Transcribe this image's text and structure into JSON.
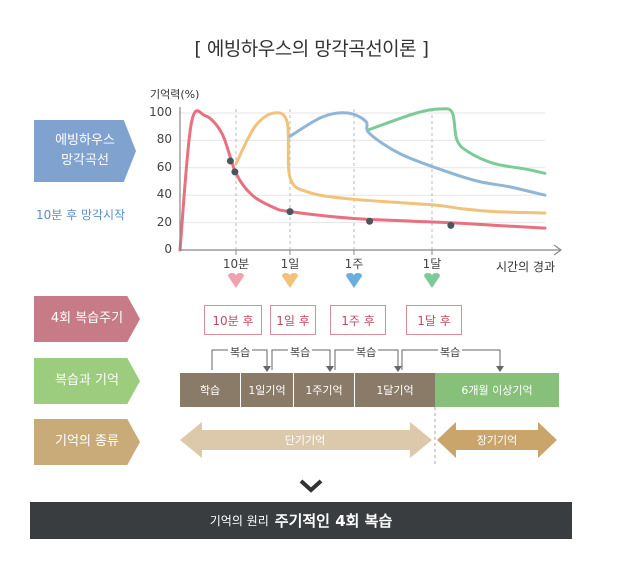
{
  "title": "[ 에빙하우스의 망각곡선이론 ]",
  "side": {
    "curve_label": "에빙하우스\n망각곡선",
    "forget_start": "10분 후 망각시작",
    "cycle_label": "4회 복습주기",
    "review_memory_label": "복습과 기억",
    "memory_types_label": "기억의 종류"
  },
  "chart_data": {
    "type": "line",
    "ylabel": "기억력(%)",
    "xlabel": "시간의 경과",
    "yticks": [
      "0",
      "20",
      "40",
      "60",
      "80",
      "100"
    ],
    "ylim": [
      0,
      100
    ],
    "xticks": [
      "10분",
      "1일",
      "1주",
      "1달"
    ],
    "series": [
      {
        "color": "#e8707f",
        "points": [
          [
            0,
            0
          ],
          [
            0.2,
            92
          ],
          [
            0.45,
            98
          ],
          [
            0.75,
            85
          ],
          [
            1,
            56
          ],
          [
            1.3,
            40
          ],
          [
            1.7,
            31
          ],
          [
            2,
            28
          ],
          [
            3,
            23
          ],
          [
            4.5,
            20
          ],
          [
            6,
            18
          ],
          [
            7.6,
            16
          ]
        ]
      },
      {
        "color": "#f0c27a",
        "points": [
          [
            1,
            63
          ],
          [
            1.35,
            90
          ],
          [
            1.7,
            100
          ],
          [
            1.95,
            93
          ],
          [
            2,
            53
          ],
          [
            2.3,
            42
          ],
          [
            3,
            37
          ],
          [
            4,
            33
          ],
          [
            5,
            30
          ],
          [
            6,
            28
          ],
          [
            7.6,
            27
          ]
        ]
      },
      {
        "color": "#8fb6d6",
        "points": [
          [
            2,
            83
          ],
          [
            2.5,
            97
          ],
          [
            2.9,
            100
          ],
          [
            3.15,
            94
          ],
          [
            3.2,
            85
          ],
          [
            3.6,
            70
          ],
          [
            4.5,
            57
          ],
          [
            5.5,
            50
          ],
          [
            6.5,
            46
          ],
          [
            7.6,
            40
          ]
        ]
      },
      {
        "color": "#7ccb97",
        "points": [
          [
            3.2,
            88
          ],
          [
            3.8,
            100
          ],
          [
            4.3,
            103
          ],
          [
            4.65,
            100
          ],
          [
            4.8,
            80
          ],
          [
            5.2,
            71
          ],
          [
            6,
            63
          ],
          [
            7,
            59
          ],
          [
            7.6,
            56
          ]
        ]
      }
    ],
    "review_points": [
      [
        0.9,
        65
      ],
      [
        0.98,
        57
      ],
      [
        2,
        28
      ],
      [
        3.2,
        21
      ],
      [
        4.6,
        18
      ]
    ]
  },
  "intervals": [
    "10분 후",
    "1일 후",
    "1주 후",
    "1달 후"
  ],
  "marker_colors": [
    "#f0a2b0",
    "#f0c27a",
    "#6aaee0",
    "#7ccb97"
  ],
  "stages": [
    {
      "label": "학습",
      "color": "#8a7a68"
    },
    {
      "label": "1일기억",
      "color": "#8a7a68"
    },
    {
      "label": "1주기억",
      "color": "#8a7a68"
    },
    {
      "label": "1달기억",
      "color": "#8a7a68"
    },
    {
      "label": "6개월 이상기억",
      "color": "#86c079"
    }
  ],
  "review": "복습",
  "memory_types": {
    "short": "단기기억",
    "long": "장기기억"
  },
  "footer": {
    "prefix": "기억의 원리",
    "emphasis": "주기적인 4회 복습"
  },
  "colors": {
    "pink_tag": "#c77b87",
    "blue_tag": "#7fa2cf",
    "green_tag": "#9ccc7d",
    "tan_tag": "#c8ab78",
    "short_arrow": "#dcc9ab",
    "long_arrow": "#c9a56c"
  }
}
